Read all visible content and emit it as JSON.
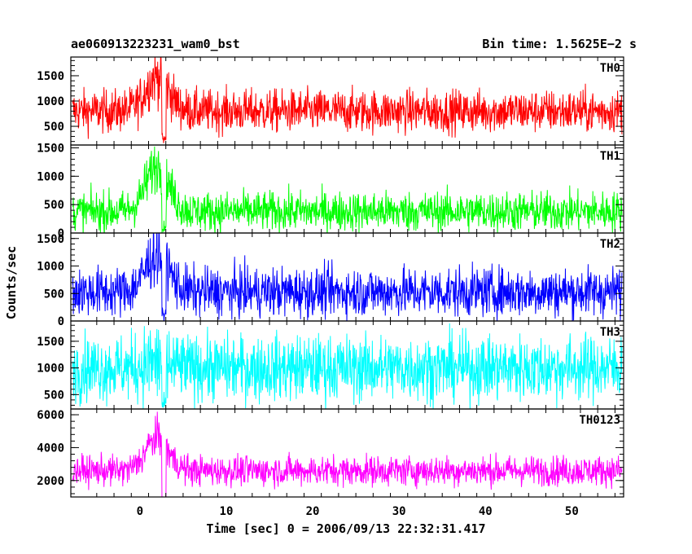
{
  "header": {
    "left_title": "ae060913223231_wam0_bst",
    "right_title": "Bin time: 1.5625E−2 s"
  },
  "axes": {
    "ylabel": "Counts/sec",
    "xlabel": "Time [sec] 0 = 2006/09/13 22:32:31.417"
  },
  "chart_data": {
    "type": "line",
    "x_ticks": [
      0,
      10,
      20,
      30,
      40,
      50
    ],
    "xlim": [
      -8,
      56
    ],
    "panels": [
      {
        "name": "TH0",
        "color": "#ff0000",
        "ylim": [
          130,
          1870
        ],
        "yticks": [
          500,
          1000,
          1500
        ],
        "baseline": 800,
        "noise": 300,
        "burst": 700
      },
      {
        "name": "TH1",
        "color": "#00ff00",
        "ylim": [
          0,
          1550
        ],
        "yticks": [
          0,
          500,
          1000,
          1500
        ],
        "baseline": 380,
        "noise": 250,
        "burst": 800
      },
      {
        "name": "TH2",
        "color": "#0000ff",
        "ylim": [
          0,
          1600
        ],
        "yticks": [
          0,
          500,
          1000,
          1500
        ],
        "baseline": 530,
        "noise": 320,
        "burst": 700
      },
      {
        "name": "TH3",
        "color": "#00ffff",
        "ylim": [
          230,
          1880
        ],
        "yticks": [
          500,
          1000,
          1500
        ],
        "baseline": 1000,
        "noise": 440,
        "burst": 100
      },
      {
        "name": "TH0123",
        "color": "#ff00ff",
        "ylim": [
          1000,
          6350
        ],
        "yticks": [
          2000,
          4000,
          6000
        ],
        "baseline": 2600,
        "noise": 650,
        "burst": 2000
      }
    ],
    "burst_time": 2,
    "data_range": [
      -7.8,
      55.8
    ]
  }
}
